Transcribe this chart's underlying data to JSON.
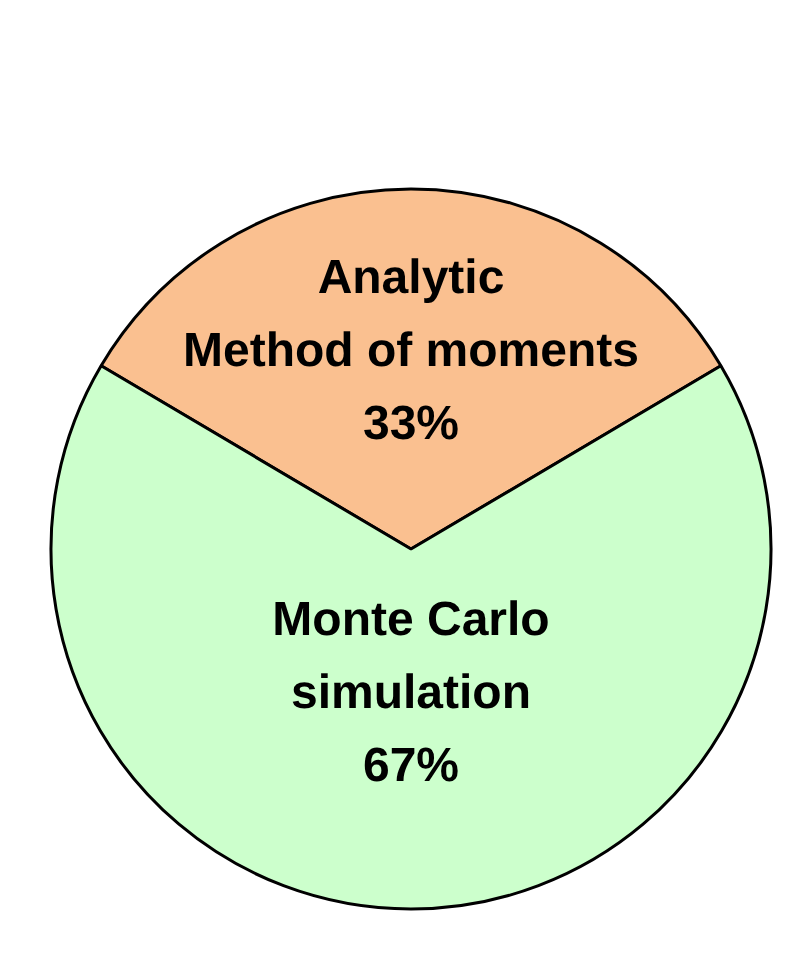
{
  "chart_data": {
    "type": "pie",
    "categories": [
      "Analytic\nMethod of moments",
      "Monte Carlo\nsimulation"
    ],
    "values": [
      33,
      67
    ],
    "value_labels": [
      "33%",
      "67%"
    ],
    "colors": [
      "#fac090",
      "#ccffcc"
    ]
  }
}
